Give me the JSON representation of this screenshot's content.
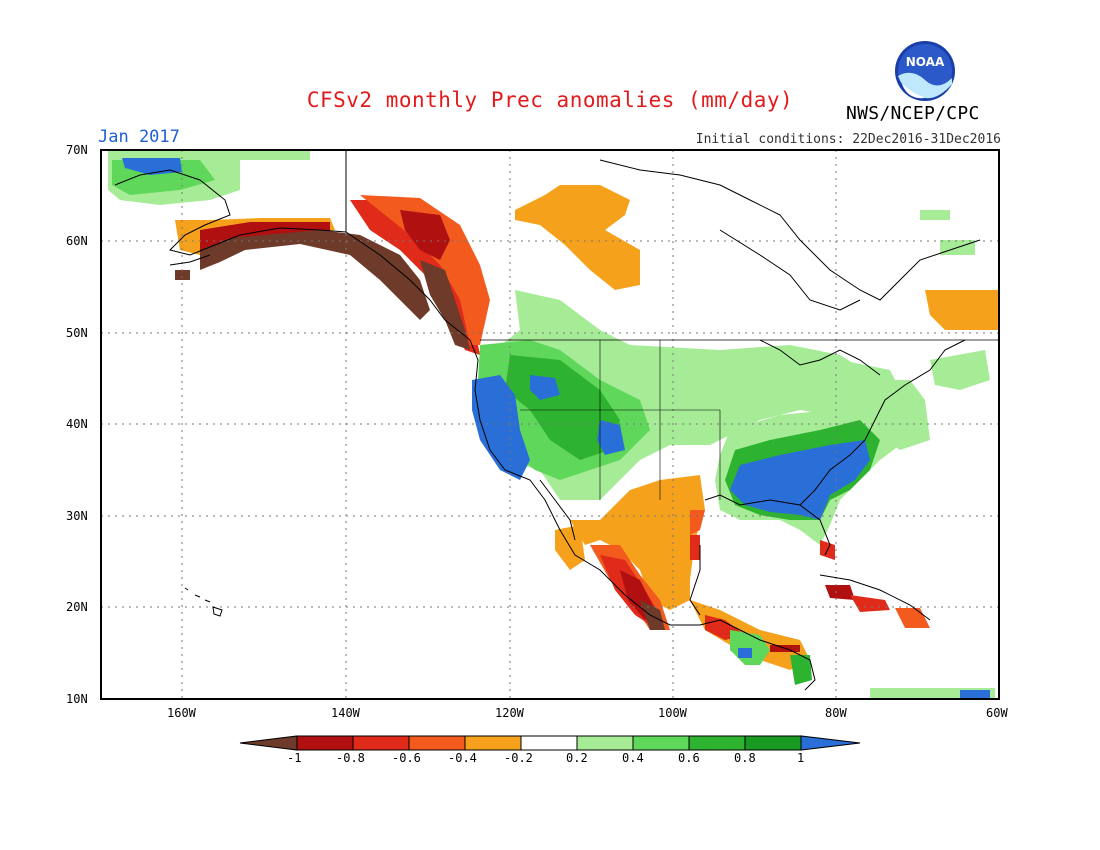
{
  "header": {
    "title": "CFSv2 monthly Prec anomalies (mm/day)",
    "month": "Jan 2017",
    "initial_conditions": "Initial conditions: 22Dec2016-31Dec2016",
    "agency": "NWS/NCEP/CPC",
    "logo_text": "NOAA"
  },
  "map": {
    "lat_labels": [
      "70N",
      "60N",
      "50N",
      "40N",
      "30N",
      "20N",
      "10N"
    ],
    "lon_labels": [
      "160W",
      "140W",
      "120W",
      "100W",
      "80W",
      "60W"
    ],
    "lat_range": [
      10,
      70
    ],
    "lon_range": [
      -170,
      -60
    ]
  },
  "colorbar": {
    "labels": [
      "-1",
      "-0.8",
      "-0.6",
      "-0.4",
      "-0.2",
      "0.2",
      "0.4",
      "0.6",
      "0.8",
      "1"
    ],
    "colors": {
      "lt_m1": "#6e3b2a",
      "m1_m08": "#b01010",
      "m08_m06": "#e02a1a",
      "m06_m04": "#f25a1e",
      "m04_m02": "#f5a11c",
      "m02_02": "#ffffff",
      "p02_04": "#a6eb96",
      "p04_06": "#5fd75a",
      "p06_08": "#2eb330",
      "p08_1": "#1a9a22",
      "gt_1": "#2a6fd8"
    }
  }
}
